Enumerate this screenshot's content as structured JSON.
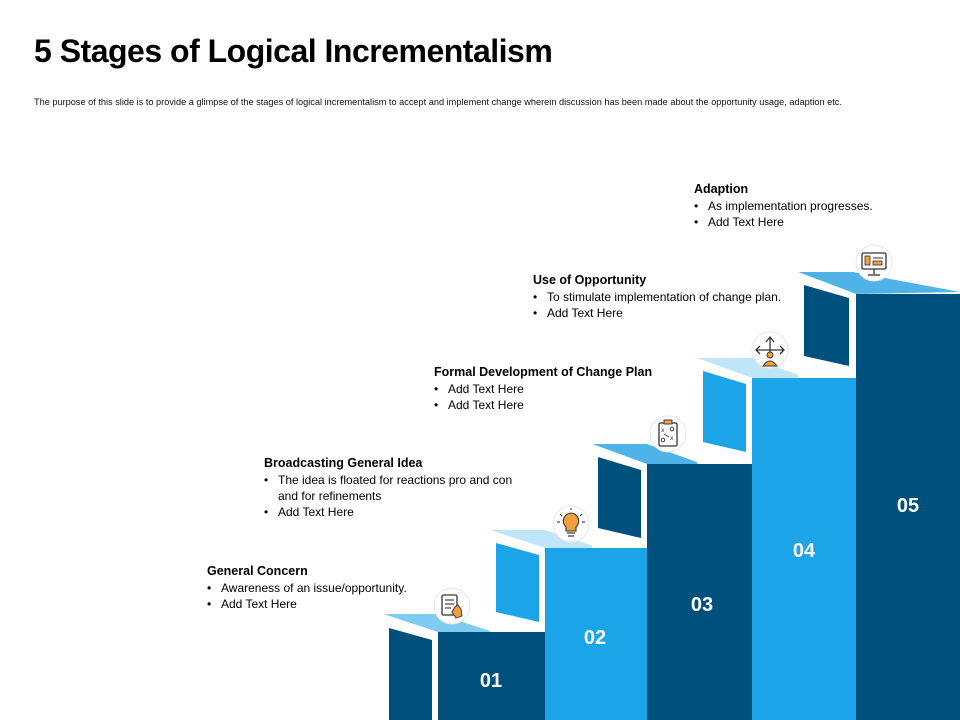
{
  "page": {
    "title": "5 Stages of Logical Incrementalism",
    "subtitle": "The purpose of this slide is to provide a glimpse of the stages of logical incrementalism to accept and implement change wherein discussion has been made about the opportunity usage, adaption etc."
  },
  "colors": {
    "dark": "#00507E",
    "light": "#1BA5E8",
    "top_light": "#7FCBF1",
    "top_dark": "#4FB3E8",
    "icon_accent": "#F2A03C"
  },
  "stages": [
    {
      "number": "01",
      "title": "General Concern",
      "bullets": [
        "Awareness  of an issue/opportunity.",
        "Add Text Here"
      ],
      "icon": "checklist-hand-icon"
    },
    {
      "number": "02",
      "title": "Broadcasting General Idea",
      "bullets": [
        "The idea is floated for reactions pro and con and for refinements",
        "Add Text Here"
      ],
      "icon": "lightbulb-icon"
    },
    {
      "number": "03",
      "title": "Formal Development of Change Plan",
      "bullets": [
        "Add Text Here",
        "Add Text Here"
      ],
      "icon": "strategy-board-icon"
    },
    {
      "number": "04",
      "title": "Use of Opportunity",
      "bullets": [
        "To stimulate implementation of change plan.",
        "Add Text Here"
      ],
      "icon": "person-directions-icon"
    },
    {
      "number": "05",
      "title": "Adaption",
      "bullets": [
        "As implementation progresses.",
        "Add Text Here"
      ],
      "icon": "monitor-dashboard-icon"
    }
  ]
}
